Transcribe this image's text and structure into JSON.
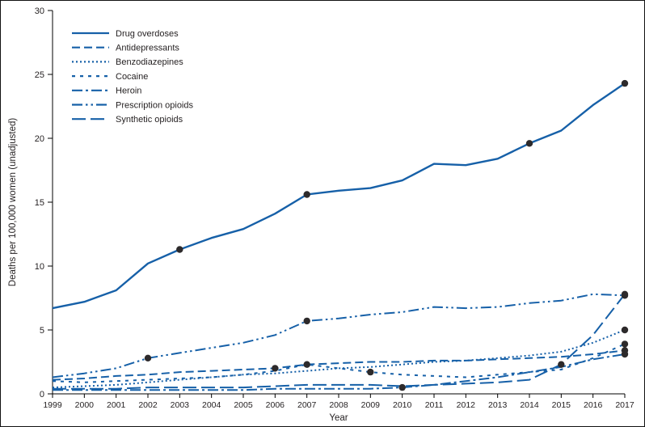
{
  "chart_data": {
    "type": "line",
    "title": "",
    "xlabel": "Year",
    "ylabel": "Deaths per 100,000 women (unadjusted)",
    "x": [
      1999,
      2000,
      2001,
      2002,
      2003,
      2004,
      2005,
      2006,
      2007,
      2008,
      2009,
      2010,
      2011,
      2012,
      2013,
      2014,
      2015,
      2016,
      2017
    ],
    "ylim": [
      0,
      30
    ],
    "yticks": [
      0,
      5,
      10,
      15,
      20,
      25,
      30
    ],
    "grid": false,
    "legend_position": "top-left-inside",
    "line_color": "#1660a8",
    "marker_color": "#2d2a2b",
    "axis_color": "#000000",
    "series": [
      {
        "name": "Drug overdoses",
        "dash": "",
        "width": 2.4,
        "values": [
          6.7,
          7.2,
          8.1,
          10.2,
          11.3,
          12.2,
          12.9,
          14.1,
          15.6,
          15.9,
          16.1,
          16.7,
          18.0,
          17.9,
          18.4,
          19.6,
          20.6,
          22.6,
          24.3
        ],
        "markers": [
          2003,
          2007,
          2014,
          2017
        ]
      },
      {
        "name": "Antidepressants",
        "dash": "10,5",
        "width": 2,
        "values": [
          1.1,
          1.2,
          1.4,
          1.5,
          1.7,
          1.8,
          1.9,
          2.0,
          2.3,
          2.4,
          2.5,
          2.5,
          2.6,
          2.6,
          2.7,
          2.8,
          2.9,
          3.1,
          3.4
        ],
        "markers": [
          2006,
          2017
        ]
      },
      {
        "name": "Benzodiazepines",
        "dash": "2,3",
        "width": 2,
        "values": [
          0.5,
          0.6,
          0.7,
          0.9,
          1.1,
          1.3,
          1.5,
          1.6,
          1.8,
          2.0,
          2.1,
          2.3,
          2.5,
          2.6,
          2.8,
          3.0,
          3.3,
          4.0,
          5.0
        ],
        "markers": [
          2017
        ]
      },
      {
        "name": "Cocaine",
        "dash": "4,6",
        "width": 2,
        "values": [
          1.0,
          0.9,
          1.0,
          1.1,
          1.2,
          1.3,
          1.5,
          1.8,
          2.3,
          2.0,
          1.7,
          1.5,
          1.4,
          1.3,
          1.5,
          1.7,
          1.9,
          2.8,
          3.9
        ],
        "markers": [
          2007,
          2009,
          2017
        ]
      },
      {
        "name": "Heroin",
        "dash": "13,4,3,4",
        "width": 2,
        "values": [
          0.3,
          0.3,
          0.3,
          0.3,
          0.3,
          0.3,
          0.3,
          0.4,
          0.4,
          0.4,
          0.4,
          0.5,
          0.7,
          1.0,
          1.3,
          1.7,
          2.1,
          2.7,
          3.1
        ],
        "markers": [
          2010,
          2017
        ]
      },
      {
        "name": "Prescription opioids",
        "dash": "13,4,2.5,4,2.5,4",
        "width": 2,
        "values": [
          1.3,
          1.6,
          2.0,
          2.8,
          3.2,
          3.6,
          4.0,
          4.6,
          5.7,
          5.9,
          6.2,
          6.4,
          6.8,
          6.7,
          6.8,
          7.1,
          7.3,
          7.8,
          7.7
        ],
        "markers": [
          2002,
          2007,
          2017
        ]
      },
      {
        "name": "Synthetic opioids",
        "dash": "17,6",
        "width": 2,
        "values": [
          0.4,
          0.4,
          0.4,
          0.5,
          0.5,
          0.5,
          0.5,
          0.6,
          0.7,
          0.7,
          0.7,
          0.6,
          0.7,
          0.8,
          0.9,
          1.1,
          2.3,
          4.6,
          7.8
        ],
        "markers": [
          2015,
          2017
        ]
      }
    ]
  }
}
